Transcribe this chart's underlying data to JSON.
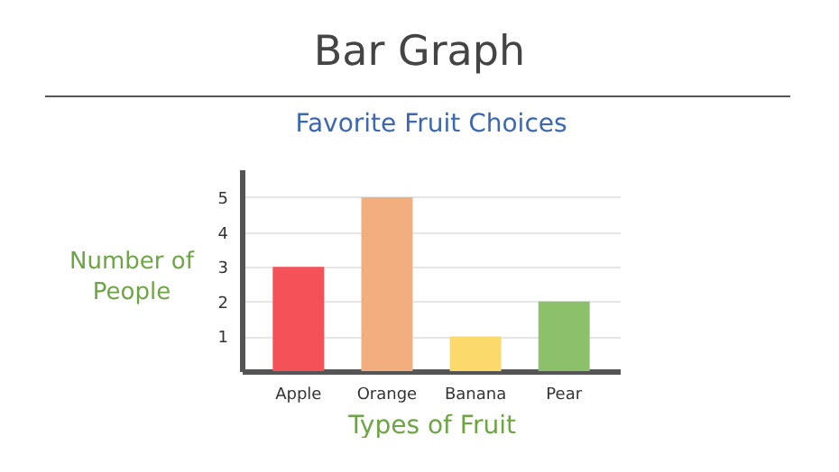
{
  "chart_data": {
    "type": "bar",
    "title": "Bar Graph",
    "subtitle": "Favorite Fruit Choices",
    "xlabel": "Types of Fruit",
    "ylabel": "Number of People",
    "categories": [
      "Apple",
      "Orange",
      "Banana",
      "Pear"
    ],
    "values": [
      3,
      5,
      1,
      2
    ],
    "colors": [
      "#f45258",
      "#f2ae7e",
      "#fcd96b",
      "#8cc06a"
    ],
    "ylim": [
      0,
      5.8
    ],
    "yticks": [
      1,
      2,
      3,
      4,
      5
    ],
    "grid": "y"
  }
}
